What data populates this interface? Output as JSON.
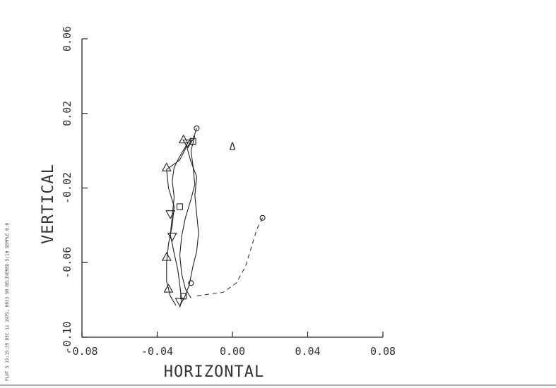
{
  "chart_data": {
    "type": "line",
    "xlabel": "HORIZONTAL",
    "ylabel": "VERTICAL",
    "xlim": [
      -0.08,
      0.08
    ],
    "ylim": [
      -0.1,
      0.06
    ],
    "xticks": [
      -0.08,
      -0.04,
      0.0,
      0.04,
      0.08
    ],
    "xtick_labels": [
      "-0.08",
      "-0.04",
      "0.00",
      "0.04",
      "0.08"
    ],
    "yticks": [
      -0.1,
      -0.06,
      -0.02,
      0.02,
      0.06
    ],
    "ytick_labels": [
      "-0.10",
      "-0.06",
      "-0.02",
      "0.02",
      "0.06"
    ],
    "grid": false,
    "series": [
      {
        "style": "solid",
        "marker": "triangle-down",
        "points": [
          [
            -0.022,
            0.007
          ],
          [
            -0.025,
            0.002
          ],
          [
            -0.028,
            -0.003
          ],
          [
            -0.031,
            -0.009
          ],
          [
            -0.032,
            -0.016
          ],
          [
            -0.031,
            -0.025
          ],
          [
            -0.032,
            -0.035
          ],
          [
            -0.033,
            -0.045
          ],
          [
            -0.031,
            -0.055
          ],
          [
            -0.029,
            -0.064
          ],
          [
            -0.028,
            -0.072
          ],
          [
            -0.027,
            -0.08
          ],
          [
            -0.028,
            -0.084
          ]
        ],
        "marker_points": [
          [
            -0.024,
            0.004
          ],
          [
            -0.033,
            -0.034
          ],
          [
            -0.032,
            -0.046
          ],
          [
            -0.028,
            -0.081
          ]
        ]
      },
      {
        "style": "solid",
        "marker": "triangle-up",
        "points": [
          [
            -0.024,
            0.003
          ],
          [
            -0.028,
            -0.005
          ],
          [
            -0.035,
            -0.01
          ],
          [
            -0.034,
            -0.02
          ],
          [
            -0.031,
            -0.03
          ],
          [
            -0.032,
            -0.04
          ],
          [
            -0.034,
            -0.05
          ],
          [
            -0.035,
            -0.06
          ],
          [
            -0.035,
            -0.07
          ],
          [
            -0.033,
            -0.078
          ],
          [
            -0.03,
            -0.083
          ]
        ],
        "marker_points": [
          [
            -0.026,
            0.006
          ],
          [
            -0.035,
            -0.009
          ],
          [
            -0.035,
            -0.057
          ],
          [
            -0.034,
            -0.074
          ]
        ]
      },
      {
        "style": "solid",
        "marker": "square",
        "points": [
          [
            -0.02,
            0.008
          ],
          [
            -0.022,
            0.0
          ],
          [
            -0.021,
            -0.008
          ],
          [
            -0.02,
            -0.018
          ],
          [
            -0.022,
            -0.026
          ],
          [
            -0.025,
            -0.036
          ],
          [
            -0.027,
            -0.046
          ],
          [
            -0.028,
            -0.056
          ],
          [
            -0.027,
            -0.066
          ],
          [
            -0.025,
            -0.074
          ],
          [
            -0.022,
            -0.079
          ]
        ],
        "marker_points": [
          [
            -0.021,
            0.005
          ],
          [
            -0.028,
            -0.03
          ],
          [
            -0.026,
            -0.078
          ]
        ]
      },
      {
        "style": "solid",
        "marker": "circle",
        "points": [
          [
            -0.019,
            0.012
          ],
          [
            -0.021,
            0.006
          ],
          [
            -0.024,
            0.001
          ],
          [
            -0.022,
            -0.006
          ],
          [
            -0.019,
            -0.014
          ],
          [
            -0.02,
            -0.024
          ],
          [
            -0.019,
            -0.034
          ],
          [
            -0.018,
            -0.044
          ],
          [
            -0.019,
            -0.054
          ],
          [
            -0.021,
            -0.062
          ],
          [
            -0.023,
            -0.072
          ],
          [
            -0.026,
            -0.08
          ]
        ],
        "marker_points": [
          [
            -0.019,
            0.012
          ],
          [
            -0.022,
            -0.071
          ]
        ]
      },
      {
        "style": "dashed",
        "marker": "circle",
        "points": [
          [
            0.016,
            -0.036
          ],
          [
            0.013,
            -0.042
          ],
          [
            0.01,
            -0.052
          ],
          [
            0.007,
            -0.062
          ],
          [
            0.002,
            -0.071
          ],
          [
            -0.005,
            -0.076
          ],
          [
            -0.013,
            -0.077
          ],
          [
            -0.02,
            -0.078
          ]
        ],
        "marker_points": [
          [
            0.016,
            -0.036
          ]
        ]
      }
    ],
    "annotations": [
      {
        "text": "Δ",
        "x": 0.0,
        "y": 0.002
      }
    ]
  },
  "side_text": "PLOT 5   15:15:35 DEC 11 1975, 0033   SM   DELIVERED 5/10  SEMPLE 0.0"
}
